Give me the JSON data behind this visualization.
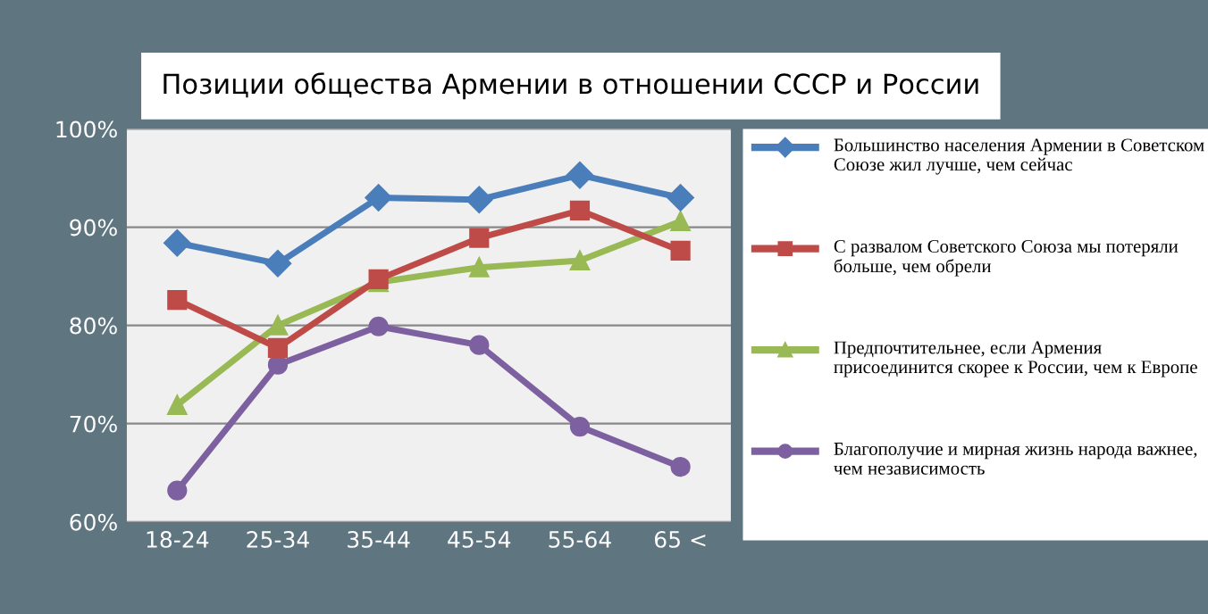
{
  "chart_data": {
    "type": "line",
    "title": "Позиции общества Армении в отношении СССР и России",
    "categories": [
      "18-24",
      "25-34",
      "35-44",
      "45-54",
      "55-64",
      "65 <"
    ],
    "series": [
      {
        "name": "Большинство населения Армении в Советском Союзе жил лучше, чем сейчас",
        "color": "#4a7ebb",
        "marker": "diamond",
        "values": [
          88.4,
          86.3,
          93.0,
          92.8,
          95.3,
          93.0
        ]
      },
      {
        "name": "С развалом Советского Союза мы потеряли больше, чем обрели",
        "color": "#be4b48",
        "marker": "square",
        "values": [
          82.6,
          77.7,
          84.7,
          88.9,
          91.7,
          87.6
        ]
      },
      {
        "name": "Предпочтительнее, если Армения присоединится скорее к России, чем к Европе",
        "color": "#98b954",
        "marker": "triangle",
        "values": [
          71.9,
          80.0,
          84.4,
          85.9,
          86.6,
          90.6
        ]
      },
      {
        "name": "Благополучие и мирная жизнь народа важнее, чем независимость",
        "color": "#7d60a0",
        "marker": "circle",
        "values": [
          63.2,
          76.0,
          79.9,
          78.0,
          69.7,
          65.6
        ]
      }
    ],
    "ylim": [
      60,
      100
    ],
    "yticks": [
      {
        "value": 60,
        "label": "60%"
      },
      {
        "value": 70,
        "label": "70%"
      },
      {
        "value": 80,
        "label": "80%"
      },
      {
        "value": 90,
        "label": "90%"
      },
      {
        "value": 100,
        "label": "100%"
      }
    ],
    "grid": "y",
    "legend": "right",
    "line_style": "solid"
  }
}
